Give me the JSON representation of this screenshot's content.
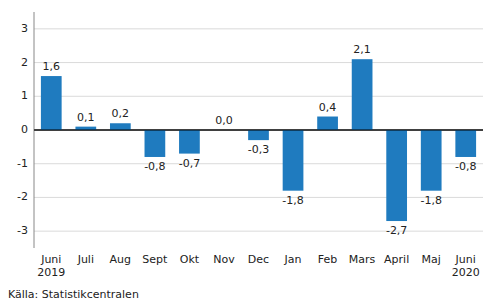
{
  "chart_data": {
    "type": "bar",
    "categories": [
      "Juni\n2019",
      "Juli",
      "Aug",
      "Sept",
      "Okt",
      "Nov",
      "Dec",
      "Jan",
      "Feb",
      "Mars",
      "April",
      "Maj",
      "Juni\n2020"
    ],
    "values": [
      1.6,
      0.1,
      0.2,
      -0.8,
      -0.7,
      0.0,
      -0.3,
      -1.8,
      0.4,
      2.1,
      -2.7,
      -1.8,
      -0.8
    ],
    "value_labels": [
      "1,6",
      "0,1",
      "0,2",
      "-0,8",
      "-0,7",
      "0,0",
      "-0,3",
      "-1,8",
      "0,4",
      "2,1",
      "-2,7",
      "-1,8",
      "-0,8"
    ],
    "color": "#1f7bbf",
    "ylim": [
      -3.5,
      3.5
    ],
    "yticks": [
      -3,
      -2,
      -1,
      0,
      1,
      2,
      3
    ],
    "grid": true,
    "data_labels": true,
    "annotations": [
      "Källa: Statistikcentralen"
    ]
  }
}
